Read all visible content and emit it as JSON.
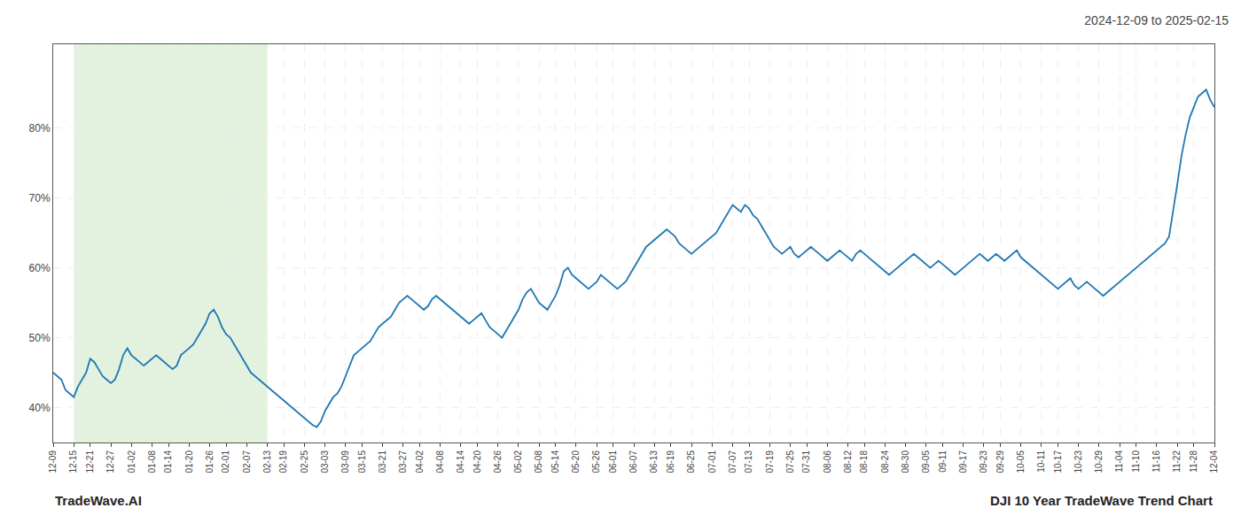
{
  "chart_data": {
    "type": "line",
    "title": "2024-12-09 to 2025-02-15",
    "annotations": [
      "TradeWave.AI",
      "DJI 10 Year TradeWave Trend Chart"
    ],
    "categories": [
      "12-09",
      null,
      null,
      null,
      null,
      "12-15",
      null,
      null,
      null,
      "12-21",
      null,
      null,
      null,
      null,
      "12-27",
      null,
      null,
      null,
      null,
      "01-02",
      null,
      null,
      null,
      null,
      "01-08",
      null,
      null,
      null,
      "01-14",
      null,
      null,
      null,
      null,
      "01-20",
      null,
      null,
      null,
      null,
      "01-26",
      null,
      null,
      null,
      "02-01",
      null,
      null,
      null,
      null,
      "02-07",
      null,
      null,
      null,
      null,
      "02-13",
      null,
      null,
      null,
      "02-19",
      null,
      null,
      null,
      null,
      "02-25",
      null,
      null,
      null,
      null,
      "03-03",
      null,
      null,
      null,
      null,
      "03-09",
      null,
      null,
      null,
      "03-15",
      null,
      null,
      null,
      null,
      "03-21",
      null,
      null,
      null,
      null,
      "03-27",
      null,
      null,
      null,
      "04-02",
      null,
      null,
      null,
      null,
      "04-08",
      null,
      null,
      null,
      null,
      "04-14",
      null,
      null,
      null,
      "04-20",
      null,
      null,
      null,
      null,
      "04-26",
      null,
      null,
      null,
      null,
      "05-02",
      null,
      null,
      null,
      null,
      "05-08",
      null,
      null,
      null,
      "05-14",
      null,
      null,
      null,
      null,
      "05-20",
      null,
      null,
      null,
      null,
      "05-26",
      null,
      null,
      null,
      "06-01",
      null,
      null,
      null,
      null,
      "06-07",
      null,
      null,
      null,
      null,
      "06-13",
      null,
      null,
      null,
      "06-19",
      null,
      null,
      null,
      null,
      "06-25",
      null,
      null,
      null,
      null,
      "07-01",
      null,
      null,
      null,
      null,
      "07-07",
      null,
      null,
      null,
      "07-13",
      null,
      null,
      null,
      null,
      "07-19",
      null,
      null,
      null,
      null,
      "07-25",
      null,
      null,
      null,
      "07-31",
      null,
      null,
      null,
      null,
      "08-06",
      null,
      null,
      null,
      null,
      "08-12",
      null,
      null,
      null,
      "08-18",
      null,
      null,
      null,
      null,
      "08-24",
      null,
      null,
      null,
      null,
      "08-30",
      null,
      null,
      null,
      null,
      "09-05",
      null,
      null,
      null,
      "09-11",
      null,
      null,
      null,
      null,
      "09-17",
      null,
      null,
      null,
      null,
      "09-23",
      null,
      null,
      null,
      "09-29",
      null,
      null,
      null,
      null,
      "10-05",
      null,
      null,
      null,
      null,
      "10-11",
      null,
      null,
      null,
      "10-17",
      null,
      null,
      null,
      null,
      "10-23",
      null,
      null,
      null,
      null,
      "10-29",
      null,
      null,
      null,
      null,
      "11-04",
      null,
      null,
      null,
      "11-10",
      null,
      null,
      null,
      null,
      "11-16",
      null,
      null,
      null,
      null,
      "11-22",
      null,
      null,
      null,
      "11-28",
      null,
      null,
      null,
      null,
      "12-04"
    ],
    "values": [
      45.0,
      44.5,
      44.0,
      42.5,
      42.0,
      41.5,
      43.0,
      44.0,
      45.0,
      47.0,
      46.5,
      45.5,
      44.5,
      44.0,
      43.5,
      44.0,
      45.5,
      47.5,
      48.5,
      47.5,
      47.0,
      46.5,
      46.0,
      46.5,
      47.0,
      47.5,
      47.0,
      46.5,
      46.0,
      45.5,
      46.0,
      47.5,
      48.0,
      48.5,
      49.0,
      50.0,
      51.0,
      52.0,
      53.5,
      54.0,
      53.0,
      51.5,
      50.5,
      50.0,
      49.0,
      48.0,
      47.0,
      46.0,
      45.0,
      44.5,
      44.0,
      43.5,
      43.0,
      42.5,
      42.0,
      41.5,
      41.0,
      40.5,
      40.0,
      39.5,
      39.0,
      38.5,
      38.0,
      37.5,
      37.2,
      38.0,
      39.5,
      40.5,
      41.5,
      42.0,
      43.0,
      44.5,
      46.0,
      47.5,
      48.0,
      48.5,
      49.0,
      49.5,
      50.5,
      51.5,
      52.0,
      52.5,
      53.0,
      54.0,
      55.0,
      55.5,
      56.0,
      55.5,
      55.0,
      54.5,
      54.0,
      54.5,
      55.5,
      56.0,
      55.5,
      55.0,
      54.5,
      54.0,
      53.5,
      53.0,
      52.5,
      52.0,
      52.5,
      53.0,
      53.5,
      52.5,
      51.5,
      51.0,
      50.5,
      50.0,
      51.0,
      52.0,
      53.0,
      54.0,
      55.5,
      56.5,
      57.0,
      56.0,
      55.0,
      54.5,
      54.0,
      55.0,
      56.0,
      57.5,
      59.5,
      60.0,
      59.0,
      58.5,
      58.0,
      57.5,
      57.0,
      57.5,
      58.0,
      59.0,
      58.5,
      58.0,
      57.5,
      57.0,
      57.5,
      58.0,
      59.0,
      60.0,
      61.0,
      62.0,
      63.0,
      63.5,
      64.0,
      64.5,
      65.0,
      65.5,
      65.0,
      64.5,
      63.5,
      63.0,
      62.5,
      62.0,
      62.5,
      63.0,
      63.5,
      64.0,
      64.5,
      65.0,
      66.0,
      67.0,
      68.0,
      69.0,
      68.5,
      68.0,
      69.0,
      68.5,
      67.5,
      67.0,
      66.0,
      65.0,
      64.0,
      63.0,
      62.5,
      62.0,
      62.5,
      63.0,
      62.0,
      61.5,
      62.0,
      62.5,
      63.0,
      62.5,
      62.0,
      61.5,
      61.0,
      61.5,
      62.0,
      62.5,
      62.0,
      61.5,
      61.0,
      62.0,
      62.5,
      62.0,
      61.5,
      61.0,
      60.5,
      60.0,
      59.5,
      59.0,
      59.5,
      60.0,
      60.5,
      61.0,
      61.5,
      62.0,
      61.5,
      61.0,
      60.5,
      60.0,
      60.5,
      61.0,
      60.5,
      60.0,
      59.5,
      59.0,
      59.5,
      60.0,
      60.5,
      61.0,
      61.5,
      62.0,
      61.5,
      61.0,
      61.5,
      62.0,
      61.5,
      61.0,
      61.5,
      62.0,
      62.5,
      61.5,
      61.0,
      60.5,
      60.0,
      59.5,
      59.0,
      58.5,
      58.0,
      57.5,
      57.0,
      57.5,
      58.0,
      58.5,
      57.5,
      57.0,
      57.5,
      58.0,
      57.5,
      57.0,
      56.5,
      56.0,
      56.5,
      57.0,
      57.5,
      58.0,
      58.5,
      59.0,
      59.5,
      60.0,
      60.5,
      61.0,
      61.5,
      62.0,
      62.5,
      63.0,
      63.5,
      64.5,
      68.0,
      72.0,
      76.0,
      79.0,
      81.5,
      83.0,
      84.5,
      85.0,
      85.5,
      84.0,
      83.0
    ],
    "color": "#1f77b4",
    "ylim": [
      35,
      92
    ],
    "yticks": [
      {
        "value": 40,
        "label": "40%"
      },
      {
        "value": 50,
        "label": "50%"
      },
      {
        "value": 60,
        "label": "60%"
      },
      {
        "value": 70,
        "label": "70%"
      },
      {
        "value": 80,
        "label": "80%"
      }
    ],
    "grid": true,
    "shaded_range": {
      "start": "12-15",
      "end": "02-13",
      "color": "#d6ecd2"
    }
  }
}
